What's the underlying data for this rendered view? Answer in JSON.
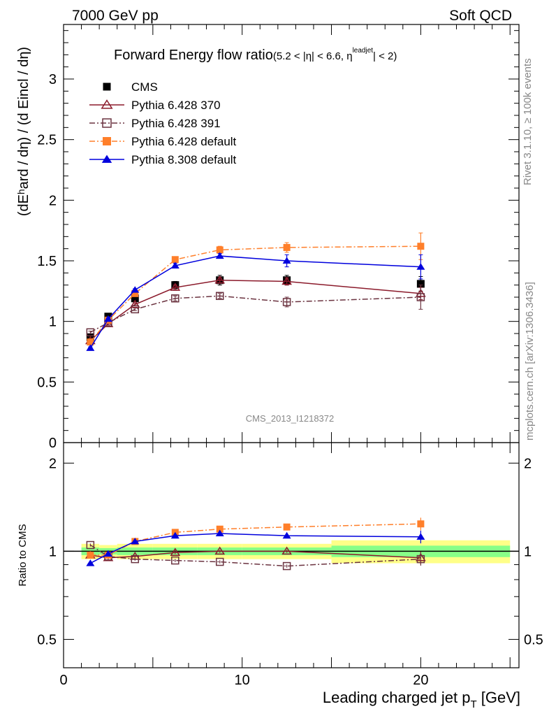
{
  "header": {
    "left": "7000 GeV pp",
    "right": "Soft QCD"
  },
  "side": {
    "rivet": "Rivet 3.1.10, ≥ 100k events",
    "mcplots": "mcplots.cern.ch [arXiv:1306.3436]"
  },
  "watermark": "CMS_2013_I1218372",
  "colors": {
    "CMS": "#000000",
    "Pythia 6.428 370": "#8b1a2b",
    "Pythia 6.428 391": "#6b3340",
    "Pythia 6.428 default": "#ff7f2a",
    "Pythia 8.308 default": "#0000dd",
    "band_inner": "#88ff88",
    "band_outer": "#ffff88"
  },
  "chart_data": [
    {
      "type": "line",
      "title_main": "Forward Energy flow ratio",
      "title_sub": "(5.2 < |η| < 6.6, η",
      "title_sup": "leadjet",
      "title_end": "| < 2)",
      "ylabel": "(dEʰard / dη) / (d Eincl / dη)",
      "xlim": [
        0,
        25.5
      ],
      "ylim": [
        0,
        3.45
      ],
      "yticks": [
        "0",
        "0.5",
        "1",
        "1.5",
        "2",
        "2.5",
        "3"
      ],
      "x": [
        1.5,
        2.5,
        4,
        6.25,
        8.75,
        12.5,
        20
      ],
      "series": [
        {
          "name": "CMS",
          "marker": "square-filled",
          "line": "none",
          "values": [
            0.87,
            1.04,
            1.19,
            1.3,
            1.34,
            1.34,
            1.31
          ],
          "errors": [
            0.02,
            0.02,
            0.03,
            0.03,
            0.04,
            0.04,
            0.06
          ]
        },
        {
          "name": "Pythia 6.428 370",
          "marker": "triangle-open",
          "line": "solid",
          "values": [
            0.84,
            0.98,
            1.14,
            1.28,
            1.34,
            1.33,
            1.23
          ],
          "errors": [
            0.01,
            0.01,
            0.01,
            0.02,
            0.02,
            0.03,
            0.05
          ]
        },
        {
          "name": "Pythia 6.428 391",
          "marker": "square-open",
          "line": "dashdot",
          "values": [
            0.91,
            0.99,
            1.1,
            1.19,
            1.21,
            1.16,
            1.2
          ],
          "errors": [
            0.01,
            0.01,
            0.01,
            0.02,
            0.02,
            0.04,
            0.1
          ]
        },
        {
          "name": "Pythia 6.428 default",
          "marker": "square-filled",
          "line": "dashdot",
          "values": [
            0.83,
            1.01,
            1.23,
            1.51,
            1.59,
            1.61,
            1.62
          ],
          "errors": [
            0.01,
            0.01,
            0.01,
            0.02,
            0.03,
            0.04,
            0.11
          ]
        },
        {
          "name": "Pythia 8.308 default",
          "marker": "triangle-filled",
          "line": "solid",
          "values": [
            0.78,
            1.02,
            1.26,
            1.46,
            1.54,
            1.5,
            1.45
          ],
          "errors": [
            0.01,
            0.01,
            0.01,
            0.02,
            0.02,
            0.05,
            0.1
          ]
        }
      ]
    },
    {
      "type": "line",
      "ylabel": "Ratio to CMS",
      "xlabel": "Leading charged jet p",
      "xlabel_sub": "T",
      "xlabel_end": " [GeV]",
      "xlim": [
        0,
        25.5
      ],
      "ylim": [
        0.4,
        2.35
      ],
      "yscale": "log",
      "xticks": [
        "0",
        "10",
        "20"
      ],
      "yticks": [
        "0.5",
        "1",
        "2"
      ],
      "x": [
        1.5,
        2.5,
        4,
        6.25,
        8.75,
        12.5,
        20
      ],
      "series": [
        {
          "name": "Pythia 6.428 370",
          "values": [
            0.97,
            0.95,
            0.96,
            0.99,
            1.0,
            1.0,
            0.95
          ]
        },
        {
          "name": "Pythia 6.428 391",
          "values": [
            1.05,
            0.96,
            0.94,
            0.93,
            0.92,
            0.89,
            0.94
          ]
        },
        {
          "name": "Pythia 6.428 default",
          "values": [
            0.97,
            0.97,
            1.08,
            1.16,
            1.19,
            1.21,
            1.24
          ]
        },
        {
          "name": "Pythia 8.308 default",
          "values": [
            0.91,
            0.98,
            1.08,
            1.13,
            1.15,
            1.13,
            1.12
          ]
        }
      ],
      "band": {
        "x_edges": [
          1,
          2,
          3,
          5,
          7.5,
          10,
          15,
          25
        ],
        "inner": [
          0.03,
          0.025,
          0.03,
          0.03,
          0.03,
          0.03,
          0.045
        ],
        "outer": [
          0.06,
          0.05,
          0.06,
          0.06,
          0.06,
          0.06,
          0.09
        ]
      }
    }
  ]
}
